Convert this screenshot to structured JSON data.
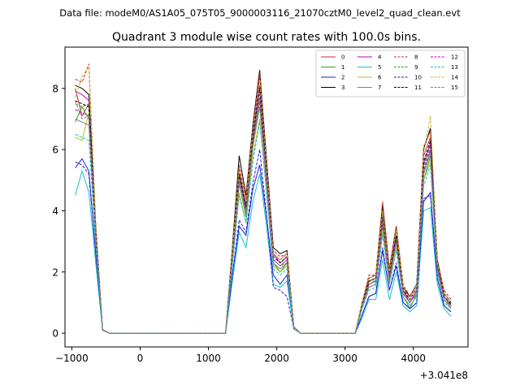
{
  "chart_data": {
    "type": "line",
    "suptitle": "Data file: modeM0/AS1A05_075T05_9000003116_21070cztM0_level2_quad_clean.evt",
    "title": "Quadrant 3 module wise count rates with 100.0s bins.",
    "xlabel": "",
    "ylabel": "",
    "offset_label": "+3.041e8",
    "xlim": [
      -1100,
      4800
    ],
    "ylim": [
      -0.45,
      9.35
    ],
    "xticks": [
      -1000,
      0,
      1000,
      2000,
      3000,
      4000
    ],
    "xtick_labels": [
      "−1000",
      "0",
      "1000",
      "2000",
      "3000",
      "4000"
    ],
    "yticks": [
      0,
      2,
      4,
      6,
      8
    ],
    "ytick_labels": [
      "0",
      "2",
      "4",
      "6",
      "8"
    ],
    "legend_position": "top-right",
    "x": [
      -950,
      -850,
      -750,
      -650,
      -550,
      -450,
      -350,
      -250,
      -150,
      -50,
      50,
      150,
      250,
      350,
      450,
      550,
      650,
      750,
      850,
      950,
      1050,
      1150,
      1250,
      1350,
      1450,
      1550,
      1650,
      1750,
      1850,
      1950,
      2050,
      2150,
      2250,
      2350,
      2450,
      2550,
      2650,
      2750,
      2850,
      2950,
      3050,
      3150,
      3250,
      3350,
      3450,
      3550,
      3650,
      3750,
      3850,
      3950,
      4050,
      4150,
      4250,
      4350,
      4450,
      4550
    ],
    "series": [
      {
        "name": "0",
        "color": "#d62728",
        "dash": false,
        "values": [
          8.0,
          7.1,
          7.5,
          3.4,
          0.12,
          0,
          0,
          0,
          0,
          0,
          0,
          0,
          0,
          0,
          0,
          0,
          0,
          0,
          0,
          0,
          0,
          0,
          0,
          2.6,
          5.4,
          4.1,
          6.6,
          8.4,
          5.5,
          2.6,
          2.4,
          2.6,
          0.2,
          0,
          0,
          0,
          0,
          0,
          0,
          0,
          0,
          0,
          1.0,
          1.7,
          1.8,
          4.2,
          2.0,
          3.4,
          1.5,
          1.1,
          1.5,
          5.8,
          6.4,
          2.3,
          1.3,
          1.0
        ]
      },
      {
        "name": "1",
        "color": "#2ca02c",
        "dash": false,
        "values": [
          6.9,
          7.4,
          7.0,
          3.0,
          0.1,
          0,
          0,
          0,
          0,
          0,
          0,
          0,
          0,
          0,
          0,
          0,
          0,
          0,
          0,
          0,
          0,
          0,
          0,
          2.3,
          4.9,
          3.8,
          6.2,
          7.6,
          5.0,
          2.3,
          2.0,
          2.3,
          0.18,
          0,
          0,
          0,
          0,
          0,
          0,
          0,
          0,
          0,
          0.9,
          1.5,
          1.6,
          3.6,
          1.8,
          3.0,
          1.2,
          0.8,
          1.3,
          5.0,
          5.8,
          2.1,
          1.1,
          0.8
        ]
      },
      {
        "name": "2",
        "color": "#1f1fd6",
        "dash": false,
        "values": [
          5.4,
          5.7,
          5.3,
          2.6,
          0.1,
          0,
          0,
          0,
          0,
          0,
          0,
          0,
          0,
          0,
          0,
          0,
          0,
          0,
          0,
          0,
          0,
          0,
          0,
          1.9,
          3.5,
          3.2,
          4.7,
          5.5,
          3.8,
          1.9,
          1.6,
          1.9,
          0.15,
          0,
          0,
          0,
          0,
          0,
          0,
          0,
          0,
          0,
          0.6,
          1.2,
          1.3,
          2.7,
          1.4,
          2.2,
          1.0,
          0.8,
          1.0,
          4.3,
          4.6,
          1.8,
          0.9,
          0.7
        ]
      },
      {
        "name": "3",
        "color": "#000000",
        "dash": false,
        "values": [
          8.1,
          8.0,
          7.8,
          3.5,
          0.12,
          0,
          0,
          0,
          0,
          0,
          0,
          0,
          0,
          0,
          0,
          0,
          0,
          0,
          0,
          0,
          0,
          0,
          0,
          2.8,
          5.8,
          4.5,
          6.8,
          8.6,
          5.7,
          2.8,
          2.6,
          2.7,
          0.2,
          0,
          0,
          0,
          0,
          0,
          0,
          0,
          0,
          0,
          1.0,
          1.8,
          1.9,
          4.2,
          2.1,
          3.5,
          1.5,
          1.2,
          1.6,
          6.0,
          6.7,
          2.4,
          1.3,
          1.0
        ]
      },
      {
        "name": "4",
        "color": "#c000c0",
        "dash": false,
        "values": [
          7.9,
          7.8,
          7.6,
          3.3,
          0.12,
          0,
          0,
          0,
          0,
          0,
          0,
          0,
          0,
          0,
          0,
          0,
          0,
          0,
          0,
          0,
          0,
          0,
          0,
          2.6,
          5.2,
          4.2,
          6.5,
          8.1,
          5.4,
          2.6,
          2.3,
          2.5,
          0.2,
          0,
          0,
          0,
          0,
          0,
          0,
          0,
          0,
          0,
          0.9,
          1.6,
          1.7,
          3.8,
          1.9,
          3.2,
          1.4,
          1.0,
          1.4,
          5.5,
          6.2,
          2.2,
          1.2,
          0.9
        ]
      },
      {
        "name": "5",
        "color": "#17becf",
        "dash": false,
        "values": [
          4.5,
          5.3,
          4.6,
          2.3,
          0.1,
          0,
          0,
          0,
          0,
          0,
          0,
          0,
          0,
          0,
          0,
          0,
          0,
          0,
          0,
          0,
          0,
          0,
          0,
          1.7,
          3.3,
          2.8,
          4.3,
          5.2,
          3.5,
          1.6,
          1.5,
          1.7,
          0.14,
          0,
          0,
          0,
          0,
          0,
          0,
          0,
          0,
          0,
          0.5,
          1.1,
          1.1,
          2.4,
          1.1,
          2.0,
          0.9,
          0.7,
          0.9,
          4.0,
          4.1,
          1.6,
          0.8,
          0.55
        ]
      },
      {
        "name": "6",
        "color": "#bcbd22",
        "dash": false,
        "values": [
          6.4,
          6.3,
          7.2,
          3.0,
          0.1,
          0,
          0,
          0,
          0,
          0,
          0,
          0,
          0,
          0,
          0,
          0,
          0,
          0,
          0,
          0,
          0,
          0,
          0,
          2.3,
          4.6,
          3.6,
          5.8,
          7.0,
          4.6,
          2.2,
          2.0,
          2.2,
          0.17,
          0,
          0,
          0,
          0,
          0,
          0,
          0,
          0,
          0,
          0.8,
          1.5,
          1.6,
          3.3,
          1.6,
          2.8,
          1.2,
          0.9,
          1.2,
          5.0,
          5.6,
          2.0,
          1.1,
          0.8
        ]
      },
      {
        "name": "7",
        "color": "#7f7f7f",
        "dash": false,
        "values": [
          7.0,
          6.9,
          6.8,
          3.1,
          0.1,
          0,
          0,
          0,
          0,
          0,
          0,
          0,
          0,
          0,
          0,
          0,
          0,
          0,
          0,
          0,
          0,
          0,
          0,
          2.4,
          4.9,
          3.9,
          6.1,
          7.4,
          4.9,
          2.3,
          2.1,
          2.3,
          0.18,
          0,
          0,
          0,
          0,
          0,
          0,
          0,
          0,
          0,
          0.9,
          1.5,
          1.6,
          3.5,
          1.7,
          3.0,
          1.3,
          1.0,
          1.3,
          5.2,
          5.9,
          2.1,
          1.1,
          0.85
        ]
      },
      {
        "name": "8",
        "color": "#d62728",
        "dash": true,
        "values": [
          8.3,
          8.2,
          8.8,
          3.6,
          0.12,
          0,
          0,
          0,
          0,
          0,
          0,
          0,
          0,
          0,
          0,
          0,
          0,
          0,
          0,
          0,
          0,
          0,
          0,
          2.7,
          5.5,
          4.4,
          6.7,
          8.5,
          5.6,
          2.7,
          2.5,
          2.6,
          0.2,
          0,
          0,
          0,
          0,
          0,
          0,
          0,
          0,
          0,
          1.0,
          1.9,
          1.9,
          4.3,
          2.1,
          3.5,
          1.6,
          1.2,
          1.6,
          6.1,
          6.6,
          2.4,
          1.4,
          1.1
        ]
      },
      {
        "name": "9",
        "color": "#2ca02c",
        "dash": true,
        "values": [
          7.5,
          7.4,
          7.5,
          3.2,
          0.11,
          0,
          0,
          0,
          0,
          0,
          0,
          0,
          0,
          0,
          0,
          0,
          0,
          0,
          0,
          0,
          0,
          0,
          0,
          2.5,
          5.1,
          4.0,
          6.3,
          7.8,
          5.1,
          2.4,
          2.2,
          2.4,
          0.19,
          0,
          0,
          0,
          0,
          0,
          0,
          0,
          0,
          0,
          0.9,
          1.7,
          1.7,
          3.7,
          1.8,
          3.1,
          1.3,
          1.0,
          1.4,
          5.4,
          6.1,
          2.2,
          1.2,
          0.9
        ]
      },
      {
        "name": "10",
        "color": "#1f1fd6",
        "dash": true,
        "values": [
          5.6,
          5.5,
          5.2,
          2.6,
          0.1,
          0,
          0,
          0,
          0,
          0,
          0,
          0,
          0,
          0,
          0,
          0,
          0,
          0,
          0,
          0,
          0,
          0,
          0,
          1.9,
          3.7,
          3.3,
          4.9,
          6.0,
          3.9,
          1.5,
          1.4,
          1.2,
          0.15,
          0,
          0,
          0,
          0,
          0,
          0,
          0,
          0,
          0,
          0.6,
          1.2,
          1.3,
          2.8,
          1.4,
          2.3,
          1.0,
          0.8,
          1.0,
          4.4,
          4.5,
          1.8,
          0.9,
          0.7
        ]
      },
      {
        "name": "11",
        "color": "#000000",
        "dash": true,
        "values": [
          7.6,
          7.5,
          7.4,
          3.3,
          0.11,
          0,
          0,
          0,
          0,
          0,
          0,
          0,
          0,
          0,
          0,
          0,
          0,
          0,
          0,
          0,
          0,
          0,
          0,
          2.6,
          5.2,
          4.1,
          6.4,
          8.0,
          5.3,
          2.5,
          2.3,
          2.5,
          0.2,
          0,
          0,
          0,
          0,
          0,
          0,
          0,
          0,
          0,
          0.9,
          1.7,
          1.8,
          3.9,
          1.9,
          3.2,
          1.4,
          1.1,
          1.5,
          5.6,
          6.3,
          2.3,
          1.2,
          0.95
        ]
      },
      {
        "name": "12",
        "color": "#c000c0",
        "dash": true,
        "values": [
          7.3,
          7.2,
          7.1,
          3.2,
          0.11,
          0,
          0,
          0,
          0,
          0,
          0,
          0,
          0,
          0,
          0,
          0,
          0,
          0,
          0,
          0,
          0,
          0,
          0,
          2.5,
          5.0,
          4.0,
          6.2,
          7.7,
          5.1,
          2.4,
          2.2,
          2.4,
          0.19,
          0,
          0,
          0,
          0,
          0,
          0,
          0,
          0,
          0,
          0.9,
          1.6,
          1.7,
          3.6,
          1.8,
          3.0,
          1.3,
          1.0,
          1.4,
          5.3,
          6.0,
          2.1,
          1.2,
          0.9
        ]
      },
      {
        "name": "13",
        "color": "#17becf",
        "dash": true,
        "values": [
          6.5,
          6.4,
          6.3,
          2.9,
          0.1,
          0,
          0,
          0,
          0,
          0,
          0,
          0,
          0,
          0,
          0,
          0,
          0,
          0,
          0,
          0,
          0,
          0,
          0,
          2.2,
          4.5,
          3.6,
          5.6,
          6.9,
          4.6,
          2.1,
          1.9,
          2.1,
          0.17,
          0,
          0,
          0,
          0,
          0,
          0,
          0,
          0,
          0,
          0.8,
          1.4,
          1.5,
          3.2,
          1.6,
          2.7,
          1.2,
          0.9,
          1.2,
          4.8,
          5.5,
          2.0,
          1.0,
          0.8
        ]
      },
      {
        "name": "14",
        "color": "#bcbd22",
        "dash": true,
        "values": [
          7.7,
          8.4,
          8.7,
          3.5,
          0.12,
          0,
          0,
          0,
          0,
          0,
          0,
          0,
          0,
          0,
          0,
          0,
          0,
          0,
          0,
          0,
          0,
          0,
          0,
          2.7,
          5.4,
          4.3,
          6.6,
          8.3,
          5.5,
          2.6,
          2.4,
          2.6,
          0.2,
          0,
          0,
          0,
          0,
          0,
          0,
          0,
          0,
          0,
          1.0,
          1.8,
          1.9,
          4.0,
          2.0,
          3.4,
          1.5,
          1.1,
          1.5,
          5.9,
          7.1,
          2.3,
          1.3,
          1.0
        ]
      },
      {
        "name": "15",
        "color": "#7f7f7f",
        "dash": true,
        "values": [
          7.6,
          7.0,
          7.1,
          3.2,
          0.11,
          0,
          0,
          0,
          0,
          0,
          0,
          0,
          0,
          0,
          0,
          0,
          0,
          0,
          0,
          0,
          0,
          0,
          0,
          2.5,
          5.0,
          4.0,
          6.2,
          7.6,
          5.0,
          2.4,
          2.2,
          2.3,
          0.19,
          0,
          0,
          0,
          0,
          0,
          0,
          0,
          0,
          0,
          0.9,
          1.6,
          1.7,
          3.6,
          1.8,
          3.0,
          1.3,
          1.0,
          1.3,
          5.2,
          6.0,
          2.1,
          1.1,
          0.9
        ]
      }
    ]
  }
}
